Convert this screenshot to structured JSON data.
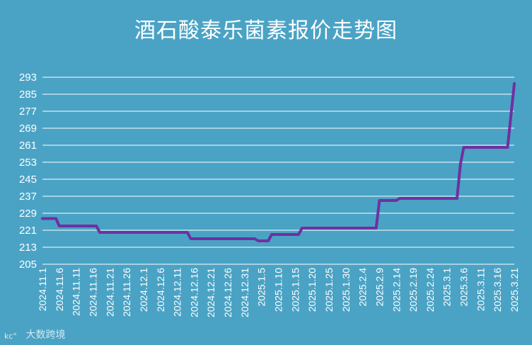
{
  "chart_data": {
    "type": "line",
    "title": "酒石酸泰乐菌素报价走势图",
    "xlabel": "",
    "ylabel": "",
    "ylim": [
      205,
      293
    ],
    "yticks": [
      205,
      213,
      221,
      229,
      237,
      245,
      253,
      261,
      269,
      277,
      285,
      293
    ],
    "x_tick_labels": [
      "2024.11.1",
      "2024.11.6",
      "2024.11.11",
      "2024.11.16",
      "2024.11.21",
      "2024.11.26",
      "2024.12.1",
      "2024.12.6",
      "2024.12.11",
      "2024.12.16",
      "2024.12.21",
      "2024.12.26",
      "2024.12.31",
      "2025.1.5",
      "2025.1.10",
      "2025.1.15",
      "2025.1.20",
      "2025.1.25",
      "2025.1.30",
      "2025.2.4",
      "2025.2.9",
      "2025.2.14",
      "2025.2.19",
      "2025.2.24",
      "2025.3.1",
      "2025.3.6",
      "2025.3.11",
      "2025.3.16",
      "2025.3.21"
    ],
    "x_range": [
      "2024-11-01",
      "2025-03-21"
    ],
    "grid": true,
    "line_color": "#7030a0",
    "series": [
      {
        "name": "",
        "points": [
          [
            "2024-11-01",
            226.5
          ],
          [
            "2024-11-05",
            226.5
          ],
          [
            "2024-11-06",
            223
          ],
          [
            "2024-11-17",
            223
          ],
          [
            "2024-11-18",
            220
          ],
          [
            "2024-12-14",
            220
          ],
          [
            "2024-12-15",
            217
          ],
          [
            "2025-01-03",
            217
          ],
          [
            "2025-01-04",
            216
          ],
          [
            "2025-01-07",
            216
          ],
          [
            "2025-01-08",
            219
          ],
          [
            "2025-01-16",
            219
          ],
          [
            "2025-01-17",
            222
          ],
          [
            "2025-02-08",
            222
          ],
          [
            "2025-02-09",
            235
          ],
          [
            "2025-02-14",
            235
          ],
          [
            "2025-02-15",
            236
          ],
          [
            "2025-03-04",
            236
          ],
          [
            "2025-03-05",
            252
          ],
          [
            "2025-03-06",
            260
          ],
          [
            "2025-03-19",
            260
          ],
          [
            "2025-03-21",
            290
          ]
        ]
      }
    ]
  },
  "watermark": {
    "text": "大数跨境"
  }
}
